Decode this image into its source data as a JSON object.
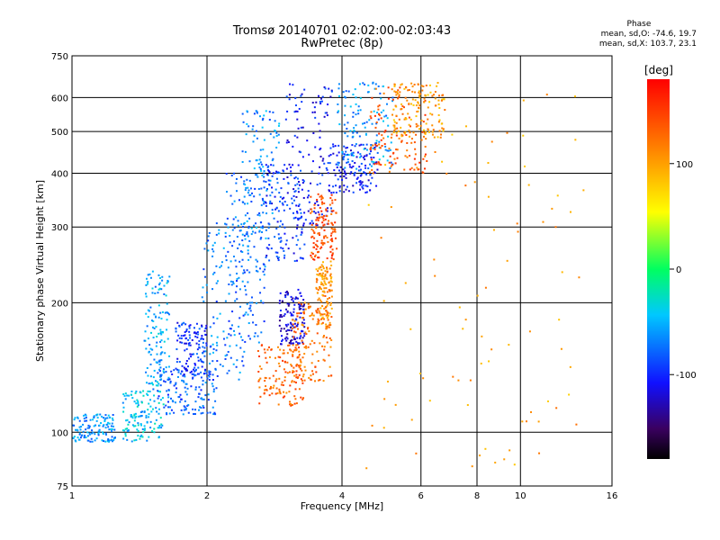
{
  "chart_data": {
    "type": "scatter",
    "title": "Tromsø 20140701 02:02:00-02:03:43",
    "subtitle": "RwPretec (8p)",
    "xlabel": "Frequency [MHz]",
    "ylabel": "Stationary phase Virtual Height [km]",
    "x_scale": "log",
    "y_scale": "log",
    "xlim": [
      1,
      16
    ],
    "ylim": [
      75,
      750
    ],
    "x_ticks": [
      1,
      2,
      4,
      6,
      8,
      10,
      16
    ],
    "y_ticks": [
      75,
      100,
      200,
      300,
      400,
      500,
      600,
      750
    ],
    "grid": true,
    "colorbar": {
      "label": "[deg]",
      "range": [
        -180,
        180
      ],
      "ticks": [
        100,
        0,
        -100
      ]
    },
    "stats": {
      "heading": "Phase",
      "o_line": "mean, sd,O: -74.6, 19.7",
      "x_line": "mean, sd,X: 103.7, 23.1"
    },
    "clusters": [
      {
        "xmin": 1.0,
        "xmax": 1.25,
        "ymin": 95,
        "ymax": 110,
        "phase": -60
      },
      {
        "xmin": 1.3,
        "xmax": 1.6,
        "ymin": 95,
        "ymax": 125,
        "phase": -45
      },
      {
        "xmin": 1.45,
        "xmax": 1.65,
        "ymin": 125,
        "ymax": 240,
        "phase": -55
      },
      {
        "xmin": 1.55,
        "xmax": 2.1,
        "ymin": 110,
        "ymax": 140,
        "phase": -80
      },
      {
        "xmin": 1.7,
        "xmax": 2.0,
        "ymin": 135,
        "ymax": 180,
        "phase": -95
      },
      {
        "xmin": 1.95,
        "xmax": 2.5,
        "ymin": 130,
        "ymax": 320,
        "phase": -70
      },
      {
        "xmin": 2.2,
        "xmax": 2.7,
        "ymin": 160,
        "ymax": 400,
        "phase": -75
      },
      {
        "xmin": 2.4,
        "xmax": 2.9,
        "ymin": 280,
        "ymax": 560,
        "phase": -65
      },
      {
        "xmin": 2.6,
        "xmax": 3.3,
        "ymin": 115,
        "ymax": 160,
        "phase": 130
      },
      {
        "xmin": 2.7,
        "xmax": 3.3,
        "ymin": 250,
        "ymax": 420,
        "phase": -95
      },
      {
        "xmin": 2.9,
        "xmax": 3.3,
        "ymin": 160,
        "ymax": 215,
        "phase": -120
      },
      {
        "xmin": 3.0,
        "xmax": 3.8,
        "ymin": 300,
        "ymax": 650,
        "phase": -105
      },
      {
        "xmin": 3.1,
        "xmax": 3.8,
        "ymin": 130,
        "ymax": 200,
        "phase": 125
      },
      {
        "xmin": 3.4,
        "xmax": 3.9,
        "ymin": 250,
        "ymax": 360,
        "phase": 140
      },
      {
        "xmin": 3.5,
        "xmax": 3.8,
        "ymin": 175,
        "ymax": 250,
        "phase": 110
      },
      {
        "xmin": 3.7,
        "xmax": 4.8,
        "ymin": 360,
        "ymax": 470,
        "phase": -105
      },
      {
        "xmin": 3.9,
        "xmax": 5.2,
        "ymin": 400,
        "ymax": 650,
        "phase": -60
      },
      {
        "xmin": 4.6,
        "xmax": 6.2,
        "ymin": 400,
        "ymax": 640,
        "phase": 135
      },
      {
        "xmin": 5.2,
        "xmax": 6.8,
        "ymin": 480,
        "ymax": 650,
        "phase": 100
      },
      {
        "xmin": 4.5,
        "xmax": 14,
        "ymin": 80,
        "ymax": 620,
        "phase": 100
      }
    ]
  }
}
